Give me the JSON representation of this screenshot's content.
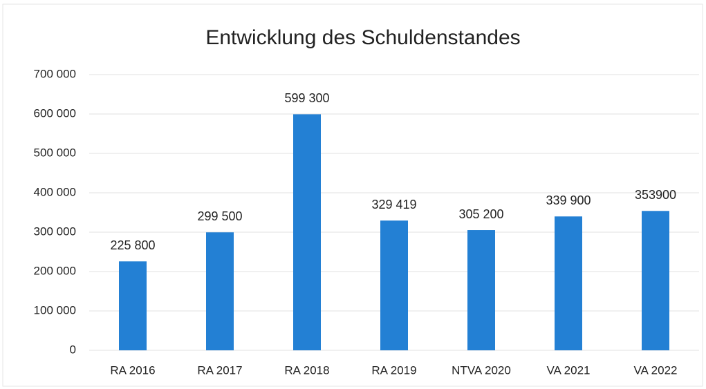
{
  "chart_data": {
    "type": "bar",
    "title": "Entwicklung des Schuldenstandes",
    "categories": [
      "RA 2016",
      "RA 2017",
      "RA 2018",
      "RA 2019",
      "NTVA 2020",
      "VA 2021",
      "VA 2022"
    ],
    "values": [
      225800,
      299500,
      599300,
      329419,
      305200,
      339900,
      353900
    ],
    "value_labels": [
      "225 800",
      "299 500",
      "599 300",
      "329 419",
      "305 200",
      "339 900",
      "353900"
    ],
    "color": "#2380d4",
    "ylim": [
      0,
      700000
    ],
    "yticks": [
      0,
      {
        "value": 100000,
        "label": "100 000"
      },
      {
        "value": 200000,
        "label": "200 000"
      },
      {
        "value": 300000,
        "label": "300 000"
      },
      {
        "value": 400000,
        "label": "400 000"
      },
      {
        "value": 500000,
        "label": "500 000"
      },
      {
        "value": 600000,
        "label": "600 000"
      },
      {
        "value": 700000,
        "label": "700 000"
      }
    ],
    "grid": true
  }
}
